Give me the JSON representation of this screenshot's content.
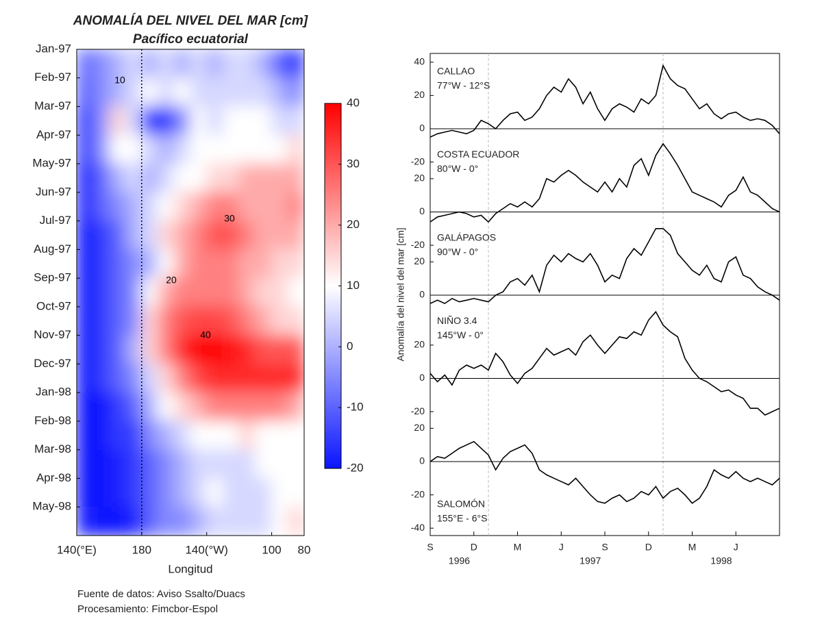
{
  "chart_data": [
    {
      "type": "contour",
      "title": "ANOMALÍA DEL NIVEL DEL MAR [cm]",
      "subtitle": "Pacífico ecuatorial",
      "x_label": "Longitud",
      "categories": [
        "Jan-97",
        "Feb-97",
        "Mar-97",
        "Apr-97",
        "May-97",
        "Jun-97",
        "Jul-97",
        "Aug-97",
        "Sep-97",
        "Oct-97",
        "Nov-97",
        "Dec-97",
        "Jan-98",
        "Feb-98",
        "Mar-98",
        "Apr-98",
        "May-98"
      ],
      "x": [
        145,
        155,
        165,
        175,
        185,
        195,
        205,
        215,
        225,
        235,
        245,
        255,
        265,
        275
      ],
      "xlim": [
        140,
        280
      ],
      "xticks": [
        {
          "value": 140,
          "label": "140(°E)"
        },
        180,
        {
          "value": 220,
          "label": "140(°W)"
        },
        {
          "value": 260,
          "label": "100"
        },
        {
          "value": 280,
          "label": "80"
        }
      ],
      "vline": 180,
      "values": [
        [
          -8,
          -5,
          0,
          5,
          0,
          5,
          0,
          5,
          0,
          5,
          5,
          0,
          -10,
          -15
        ],
        [
          -10,
          -5,
          0,
          5,
          10,
          5,
          10,
          5,
          5,
          5,
          5,
          5,
          0,
          -5
        ],
        [
          -15,
          -5,
          15,
          5,
          -15,
          -15,
          -5,
          10,
          5,
          10,
          10,
          10,
          5,
          5
        ],
        [
          -15,
          -5,
          10,
          10,
          5,
          0,
          5,
          10,
          10,
          10,
          10,
          10,
          10,
          15
        ],
        [
          -18,
          -10,
          0,
          5,
          0,
          5,
          10,
          10,
          15,
          15,
          20,
          20,
          20,
          20
        ],
        [
          -18,
          -10,
          -5,
          0,
          5,
          10,
          15,
          20,
          25,
          25,
          20,
          20,
          20,
          25
        ],
        [
          -20,
          -15,
          -10,
          0,
          5,
          15,
          20,
          25,
          30,
          30,
          25,
          20,
          20,
          20
        ],
        [
          -20,
          -15,
          -10,
          -5,
          0,
          10,
          20,
          25,
          25,
          25,
          20,
          20,
          15,
          15
        ],
        [
          -20,
          -15,
          -10,
          -5,
          10,
          20,
          25,
          25,
          25,
          25,
          20,
          15,
          15,
          10
        ],
        [
          -20,
          -15,
          -10,
          -5,
          15,
          25,
          30,
          32,
          32,
          30,
          25,
          20,
          15,
          15
        ],
        [
          -20,
          -15,
          -10,
          0,
          15,
          25,
          35,
          40,
          40,
          38,
          35,
          30,
          30,
          30
        ],
        [
          -20,
          -15,
          -10,
          -5,
          5,
          15,
          25,
          32,
          35,
          35,
          35,
          35,
          35,
          35
        ],
        [
          -20,
          -20,
          -15,
          -10,
          0,
          10,
          15,
          20,
          25,
          25,
          25,
          25,
          25,
          20
        ],
        [
          -20,
          -20,
          -15,
          -15,
          -5,
          0,
          5,
          10,
          10,
          10,
          15,
          10,
          10,
          10
        ],
        [
          -20,
          -20,
          -18,
          -15,
          -10,
          -5,
          0,
          5,
          5,
          5,
          5,
          10,
          10,
          10
        ],
        [
          -20,
          -20,
          -18,
          -15,
          -10,
          -5,
          0,
          5,
          10,
          5,
          5,
          5,
          10,
          10
        ],
        [
          -18,
          -20,
          -20,
          -18,
          -10,
          -5,
          -5,
          0,
          5,
          5,
          5,
          5,
          10,
          15
        ]
      ],
      "contour_levels": [
        10,
        20,
        30,
        40
      ],
      "colorbar": {
        "lim": [
          -20,
          40
        ],
        "ticks": [
          -20,
          -10,
          0,
          10,
          20,
          30,
          40
        ],
        "stops": [
          {
            "value": -20,
            "color": "#0a14ff"
          },
          {
            "value": 10,
            "color": "#ffffff"
          },
          {
            "value": 40,
            "color": "#ff0000"
          }
        ]
      },
      "footer": [
        "Fuente de datos: Aviso Ssalto/Duacs",
        "Procesamiento: Fimcbor-Espol"
      ]
    },
    {
      "type": "line",
      "y_label": "Anomalía del nivel del mar [cm]",
      "x": [
        0,
        0.5,
        1,
        1.5,
        2,
        2.5,
        3,
        3.5,
        4,
        4.5,
        5,
        5.5,
        6,
        6.5,
        7,
        7.5,
        8,
        8.5,
        9,
        9.5,
        10,
        10.5,
        11,
        11.5,
        12,
        12.5,
        13,
        13.5,
        14,
        14.5,
        15,
        15.5,
        16,
        16.5,
        17,
        17.5,
        18,
        18.5,
        19,
        19.5,
        20,
        20.5,
        21,
        21.5,
        22,
        22.5,
        23,
        23.5,
        24
      ],
      "xlim": [
        0,
        24
      ],
      "xticks": [
        {
          "value": 0,
          "label": "S"
        },
        {
          "value": 3,
          "label": "D"
        },
        {
          "value": 6,
          "label": "M"
        },
        {
          "value": 9,
          "label": "J"
        },
        {
          "value": 12,
          "label": "S"
        },
        {
          "value": 15,
          "label": "D"
        },
        {
          "value": 18,
          "label": "M"
        },
        {
          "value": 21,
          "label": "J"
        }
      ],
      "year_labels": [
        {
          "value": 2,
          "label": "1996"
        },
        {
          "value": 11,
          "label": "1997"
        },
        {
          "value": 20,
          "label": "1998"
        }
      ],
      "vlines": [
        4,
        16
      ],
      "color": "#000000",
      "series": [
        {
          "name": "CALLAO",
          "location": "77°W - 12°S",
          "yticks": [
            -20,
            0,
            20,
            40
          ],
          "values": [
            -5,
            -3,
            -2,
            -1,
            -2,
            -3,
            -1,
            5,
            3,
            0,
            5,
            9,
            10,
            5,
            7,
            12,
            20,
            25,
            22,
            30,
            25,
            15,
            22,
            12,
            5,
            12,
            15,
            13,
            10,
            18,
            15,
            20,
            38,
            30,
            26,
            24,
            18,
            12,
            15,
            9,
            6,
            9,
            10,
            7,
            5,
            6,
            5,
            2,
            -3
          ]
        },
        {
          "name": "COSTA ECUADOR",
          "location": "80°W - 0°",
          "yticks": [
            -20,
            0,
            20
          ],
          "values": [
            -6,
            -3,
            -2,
            -1,
            0,
            -1,
            -3,
            -2,
            -6,
            -1,
            2,
            5,
            3,
            6,
            3,
            8,
            20,
            18,
            22,
            25,
            22,
            18,
            15,
            12,
            18,
            12,
            20,
            15,
            28,
            32,
            22,
            34,
            41,
            35,
            28,
            20,
            12,
            10,
            8,
            6,
            3,
            10,
            13,
            21,
            12,
            10,
            6,
            2,
            0
          ]
        },
        {
          "name": "GALÁPAGOS",
          "location": "90°W - 0°",
          "yticks": [
            0,
            20
          ],
          "values": [
            -5,
            -3,
            -5,
            -2,
            -4,
            -3,
            -2,
            -3,
            -4,
            0,
            2,
            8,
            10,
            6,
            12,
            2,
            18,
            24,
            20,
            25,
            22,
            20,
            25,
            18,
            8,
            12,
            10,
            22,
            28,
            24,
            32,
            40,
            40,
            36,
            25,
            20,
            15,
            12,
            18,
            10,
            8,
            20,
            23,
            12,
            10,
            5,
            2,
            0,
            -3
          ]
        },
        {
          "name": "NIÑO 3.4",
          "location": "145°W - 0°",
          "yticks": [
            -20,
            0,
            20
          ],
          "values": [
            3,
            -2,
            2,
            -4,
            5,
            8,
            6,
            8,
            5,
            15,
            10,
            2,
            -3,
            3,
            6,
            12,
            18,
            14,
            16,
            18,
            14,
            22,
            26,
            20,
            15,
            20,
            25,
            24,
            28,
            26,
            35,
            40,
            32,
            28,
            25,
            12,
            5,
            0,
            -2,
            -5,
            -8,
            -7,
            -10,
            -12,
            -18,
            -18,
            -22,
            -20,
            -18
          ]
        },
        {
          "name": "SALOMÓN",
          "location": "155°E - 6°S",
          "yticks": [
            -40,
            -20,
            0,
            20
          ],
          "values": [
            0,
            3,
            2,
            5,
            8,
            10,
            12,
            8,
            4,
            -5,
            2,
            6,
            8,
            10,
            5,
            -5,
            -8,
            -10,
            -12,
            -14,
            -10,
            -15,
            -20,
            -24,
            -25,
            -22,
            -20,
            -24,
            -22,
            -18,
            -20,
            -15,
            -22,
            -18,
            -16,
            -20,
            -25,
            -22,
            -15,
            -5,
            -8,
            -10,
            -6,
            -10,
            -12,
            -10,
            -12,
            -14,
            -10
          ]
        }
      ]
    }
  ]
}
